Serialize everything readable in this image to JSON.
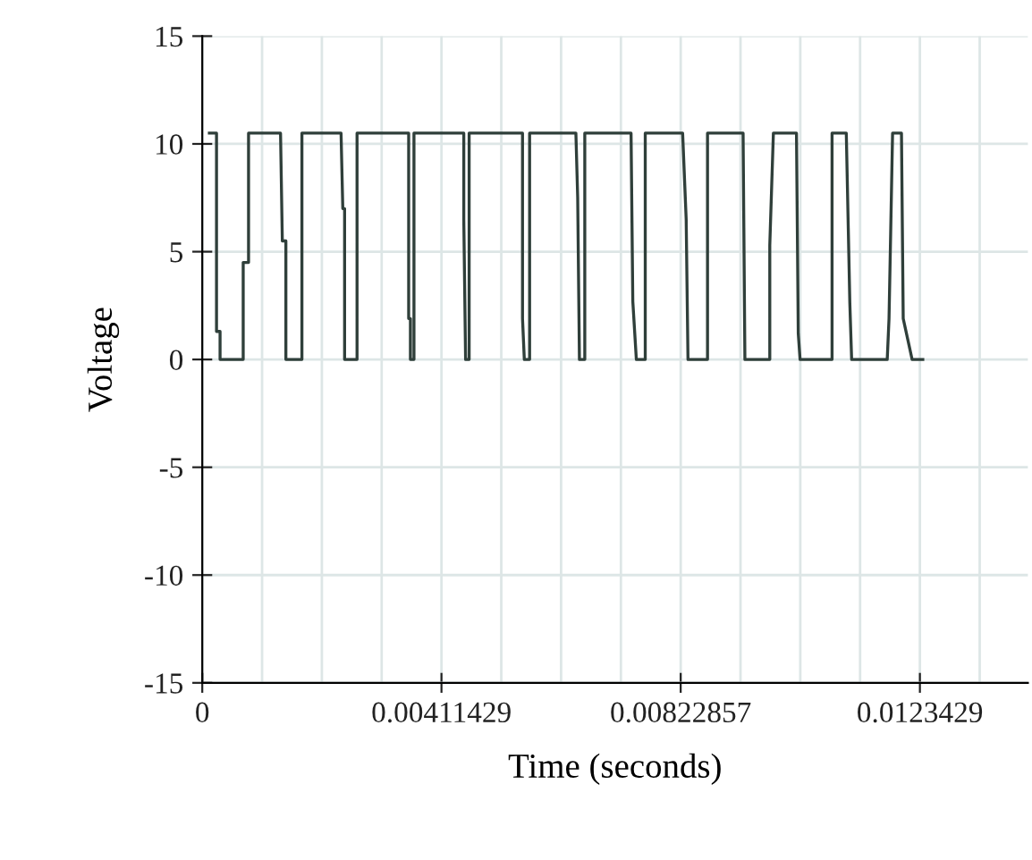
{
  "chart_data": {
    "type": "line",
    "xlabel": "Time (seconds)",
    "ylabel": "Voltage",
    "x": [
      0.000122,
      0.000245,
      0.000245,
      0.000306,
      0.000306,
      0.000704,
      0.000704,
      0.000796,
      0.000796,
      0.001346,
      0.001377,
      0.001438,
      0.001438,
      0.001714,
      0.001714,
      0.002387,
      0.002417,
      0.002448,
      0.002448,
      0.002662,
      0.002662,
      0.00355,
      0.00355,
      0.00358,
      0.00358,
      0.003641,
      0.003641,
      0.004498,
      0.004498,
      0.004529,
      0.00459,
      0.00459,
      0.005508,
      0.005508,
      0.005539,
      0.00563,
      0.00563,
      0.006426,
      0.006457,
      0.006487,
      0.006579,
      0.006579,
      0.007375,
      0.007405,
      0.007466,
      0.007619,
      0.007619,
      0.008262,
      0.008323,
      0.008354,
      0.00869,
      0.00869,
      0.009302,
      0.009333,
      0.009761,
      0.009761,
      0.009823,
      0.01022,
      0.010251,
      0.010282,
      0.010832,
      0.010832,
      0.011077,
      0.011138,
      0.011169,
      0.011781,
      0.011812,
      0.011873,
      0.012026,
      0.012056,
      0.012209,
      0.012393
    ],
    "series": [
      {
        "color": "#2f3f3a",
        "values": [
          10.5,
          10.5,
          1.3,
          1.3,
          0,
          0,
          4.5,
          4.5,
          10.5,
          10.5,
          5.5,
          5.5,
          0,
          0,
          10.5,
          10.5,
          7,
          7,
          0,
          0,
          10.5,
          10.5,
          1.9,
          1.9,
          0,
          0,
          10.5,
          10.5,
          6.5,
          0,
          0,
          10.5,
          10.5,
          1.9,
          0,
          0,
          10.5,
          10.5,
          7.5,
          0,
          0,
          10.5,
          10.5,
          2.7,
          0,
          0,
          10.5,
          10.5,
          6.5,
          0,
          0,
          10.5,
          10.5,
          0,
          0,
          5.3,
          10.5,
          10.5,
          1.2,
          0,
          0,
          10.5,
          10.5,
          2.6,
          0,
          0,
          1.9,
          10.5,
          10.5,
          1.9,
          0,
          0
        ]
      }
    ],
    "xlim": [
      0,
      0.0142
    ],
    "ylim": [
      -15,
      15
    ],
    "xticks": [
      0,
      {
        "value": 0.00102857,
        "label": null
      },
      {
        "value": 0.00205714,
        "label": null
      },
      {
        "value": 0.00308571,
        "label": null
      },
      0.00411429,
      {
        "value": 0.00514286,
        "label": null
      },
      {
        "value": 0.00617143,
        "label": null
      },
      {
        "value": 0.0072,
        "label": null
      },
      0.00822857,
      {
        "value": 0.00925714,
        "label": null
      },
      {
        "value": 0.01028571,
        "label": null
      },
      {
        "value": 0.01131429,
        "label": null
      },
      0.0123429,
      {
        "value": 0.01337143,
        "label": null
      }
    ],
    "yticks": [
      -15,
      -10,
      -5,
      0,
      5,
      10,
      15
    ],
    "grid": true,
    "marker": "none",
    "line_style": "solid"
  }
}
